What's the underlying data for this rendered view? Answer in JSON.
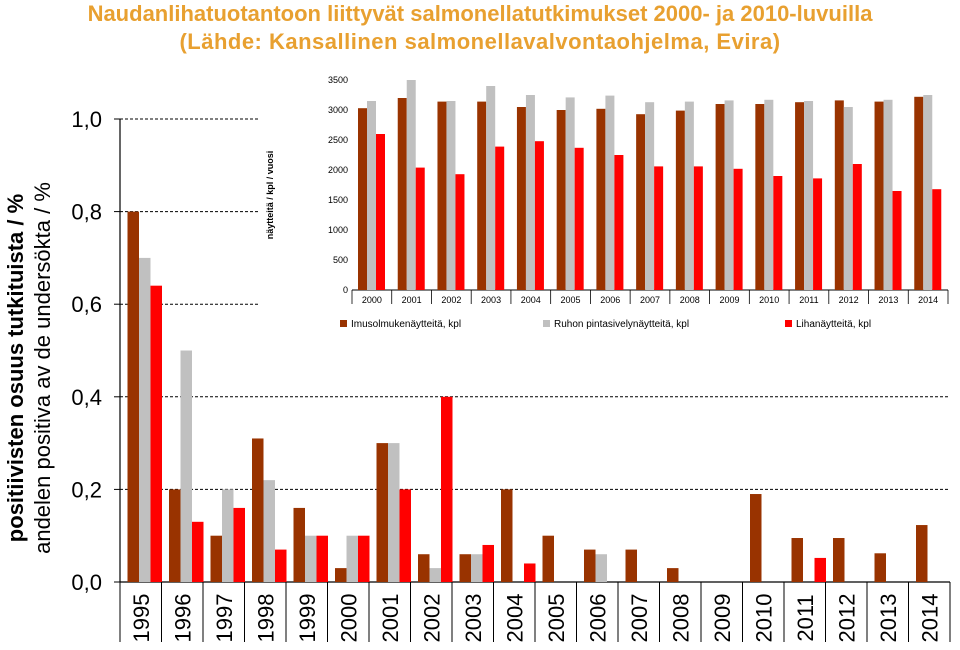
{
  "title_line1": "Naudanlihatuotantoon liittyvät salmonellatutkimukset 2000- ja 2010-luvuilla",
  "title_line2": "(Lähde: Kansallinen salmonellavalvontaohjelma, Evira)",
  "colors": {
    "s1": "#993300",
    "s2": "#c0c0c0",
    "s3": "#ff0000"
  },
  "chart_data": [
    {
      "type": "bar",
      "ylabel_line1": "positiivisten osuus tutkituista / %",
      "ylabel_line2": "andelen positiva av de undersökta / %",
      "ylim": [
        0,
        1.0
      ],
      "yticks": [
        "0,0",
        "0,2",
        "0,4",
        "0,6",
        "0,8",
        "1,0"
      ],
      "categories": [
        "1995",
        "1996",
        "1997",
        "1998",
        "1999",
        "2000",
        "2001",
        "2002",
        "2003",
        "2004",
        "2005",
        "2006",
        "2007",
        "2008",
        "2009",
        "2010",
        "2011",
        "2012",
        "2013",
        "2014"
      ],
      "series": [
        {
          "values": [
            0.8,
            0.2,
            0.1,
            0.31,
            0.16,
            0.03,
            0.3,
            0.06,
            0.06,
            0.2,
            0.1,
            0.07,
            0.07,
            0.03,
            0,
            0.19,
            0.095,
            0.095,
            0.062,
            0.123
          ]
        },
        {
          "values": [
            0.7,
            0.5,
            0.2,
            0.22,
            0.1,
            0.1,
            0.3,
            0.03,
            0.06,
            0,
            0,
            0.06,
            0,
            0,
            0,
            0,
            0,
            0,
            0,
            0
          ]
        },
        {
          "values": [
            0.64,
            0.13,
            0.16,
            0.07,
            0.1,
            0.1,
            0.2,
            0.4,
            0.08,
            0.04,
            0,
            0,
            0,
            0,
            0,
            0,
            0.052,
            0,
            0,
            0
          ]
        }
      ],
      "grid": true
    },
    {
      "type": "bar",
      "ylabel": "näytteitä / kpl / vuosi",
      "ylim": [
        0,
        3500
      ],
      "yticks": [
        "0",
        "500",
        "1000",
        "1500",
        "2000",
        "2500",
        "3000",
        "3500"
      ],
      "categories": [
        "2000",
        "2001",
        "2002",
        "2003",
        "2004",
        "2005",
        "2006",
        "2007",
        "2008",
        "2009",
        "2010",
        "2011",
        "2012",
        "2013",
        "2014"
      ],
      "series": [
        {
          "name": "Imusolmukenäytteitä, kpl",
          "values": [
            3030,
            3200,
            3140,
            3140,
            3050,
            3000,
            3020,
            2930,
            2990,
            3100,
            3100,
            3130,
            3160,
            3140,
            3220
          ]
        },
        {
          "name": "Ruhon pintasivelynäytteitä, kpl",
          "values": [
            3150,
            3500,
            3150,
            3400,
            3250,
            3210,
            3240,
            3130,
            3140,
            3160,
            3170,
            3150,
            3050,
            3170,
            3250
          ]
        },
        {
          "name": "Lihanäytteitä, kpl",
          "values": [
            2600,
            2040,
            1930,
            2390,
            2480,
            2370,
            2250,
            2060,
            2060,
            2020,
            1900,
            1860,
            2100,
            1650,
            1680
          ]
        }
      ],
      "legend": "bottom"
    }
  ]
}
